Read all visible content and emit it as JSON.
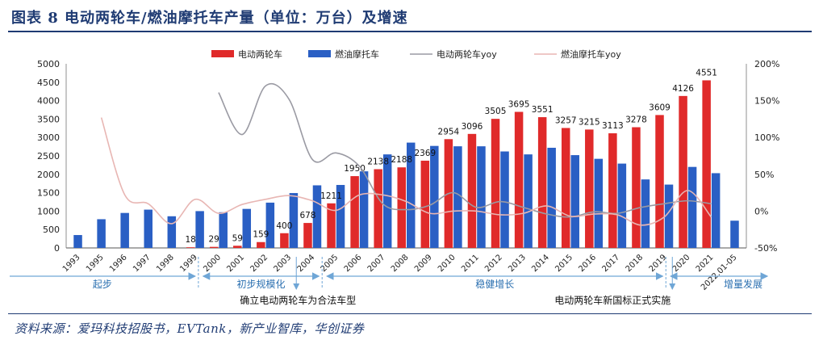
{
  "title": "图表 8 电动两轮车/燃油摩托车产量（单位：万台）及增速",
  "source": "资料来源：爱玛科技招股书，EVTank，新产业智库，华创证券",
  "chart_data": {
    "type": "bar",
    "categories": [
      "1993",
      "1995",
      "1996",
      "1997",
      "1998",
      "1999",
      "2000",
      "2001",
      "2002",
      "2003",
      "2004",
      "2005",
      "2006",
      "2007",
      "2008",
      "2009",
      "2010",
      "2011",
      "2012",
      "2013",
      "2014",
      "2015",
      "2016",
      "2017",
      "2018",
      "2019",
      "2020",
      "2021",
      "2022.01-05"
    ],
    "series": [
      {
        "name": "电动两轮车",
        "kind": "bar",
        "axis": "left",
        "color": "#e02a2a",
        "values": [
          null,
          null,
          null,
          null,
          null,
          18,
          29,
          59,
          159,
          400,
          678,
          1211,
          1950,
          2138,
          2188,
          2369,
          2954,
          3096,
          3505,
          3695,
          3551,
          3257,
          3215,
          3113,
          3278,
          3609,
          4126,
          4551,
          null
        ],
        "labels": [
          null,
          null,
          null,
          null,
          null,
          "18",
          "29",
          "59",
          "159",
          "400",
          "678",
          "1211",
          "1950",
          "2138",
          "2188",
          "2369",
          "2954",
          "3096",
          "3505",
          "3695",
          "3551",
          "3257",
          "3215",
          "3113",
          "3278",
          "3609",
          "4126",
          "4551",
          null
        ]
      },
      {
        "name": "燃油摩托车",
        "kind": "bar",
        "axis": "left",
        "color": "#2a5fc4",
        "values": [
          350,
          780,
          950,
          1040,
          860,
          1000,
          970,
          1060,
          1230,
          1490,
          1700,
          1710,
          2080,
          2540,
          2860,
          2770,
          2760,
          2760,
          2620,
          2540,
          2720,
          2520,
          2420,
          2290,
          1860,
          1720,
          2200,
          2030,
          740
        ]
      },
      {
        "name": "电动两轮车yoy",
        "kind": "line",
        "axis": "right",
        "color": "#9a9aa3",
        "values": [
          null,
          null,
          null,
          null,
          null,
          null,
          161,
          104,
          170,
          152,
          70,
          79,
          61,
          10,
          2,
          8,
          25,
          5,
          13,
          5,
          -4,
          -8,
          -1,
          -3,
          5,
          10,
          14,
          10,
          null
        ]
      },
      {
        "name": "燃油摩托车yoy",
        "kind": "line",
        "axis": "right",
        "color": "#e8b6b3",
        "values": [
          null,
          127,
          22,
          10,
          -17,
          16,
          -3,
          9,
          16,
          21,
          14,
          1,
          22,
          22,
          13,
          -3,
          0,
          0,
          -5,
          -3,
          7,
          -7,
          -4,
          -5,
          -19,
          -8,
          28,
          -8,
          null
        ]
      }
    ],
    "y_left": {
      "min": 0,
      "max": 5000,
      "step": 500,
      "ticks": [
        "0",
        "500",
        "1000",
        "1500",
        "2000",
        "2500",
        "3000",
        "3500",
        "4000",
        "4500",
        "5000"
      ]
    },
    "y_right": {
      "min": -50,
      "max": 200,
      "step": 50,
      "ticks": [
        "-50%",
        "0%",
        "50%",
        "100%",
        "150%",
        "200%"
      ]
    },
    "legend_position": "top",
    "stages": [
      {
        "label": "起步",
        "start": "1993",
        "end": "1999"
      },
      {
        "label": "初步规模化",
        "start": "1999",
        "end": "2004"
      },
      {
        "label": "稳健增长",
        "start": "2004",
        "end": "2019"
      },
      {
        "label": "增量发展",
        "start": "2019",
        "end": "2022.01-05"
      }
    ],
    "annotations": [
      {
        "text": "确立电动两轮车为合法车型",
        "at": "2004"
      },
      {
        "text": "电动两轮车新国标正式实施",
        "at": "2019"
      }
    ]
  }
}
